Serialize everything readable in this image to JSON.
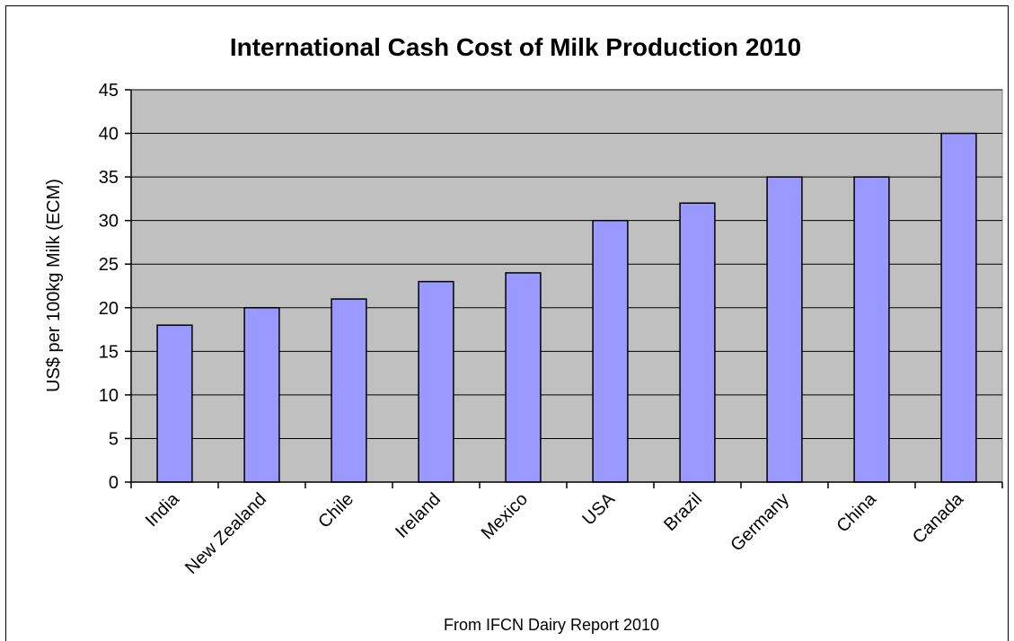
{
  "chart_data": {
    "type": "bar",
    "title": "International Cash Cost of Milk Production 2010",
    "xlabel": "",
    "ylabel": "US$ per 100kg Milk (ECM)",
    "ylim": [
      0,
      45
    ],
    "ytick_step": 5,
    "yticks": [
      "0",
      "5",
      "10",
      "15",
      "20",
      "25",
      "30",
      "35",
      "40",
      "45"
    ],
    "categories": [
      "India",
      "New Zealand",
      "Chile",
      "Ireland",
      "Mexico",
      "USA",
      "Brazil",
      "Germany",
      "China",
      "Canada"
    ],
    "values": [
      18,
      20,
      21,
      23,
      24,
      30,
      32,
      35,
      35,
      40
    ],
    "grid": true,
    "legend": "none",
    "footnote": "From IFCN Dairy Report  2010",
    "colors": {
      "bar_fill": "#9999ff",
      "bar_stroke": "#000000",
      "plot_background": "#c0c0c0",
      "gridline": "#000000"
    }
  }
}
